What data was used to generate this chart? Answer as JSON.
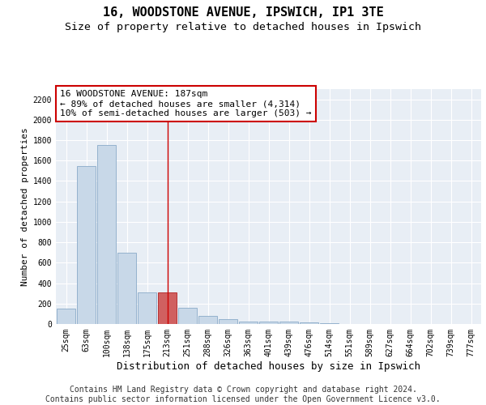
{
  "title_line1": "16, WOODSTONE AVENUE, IPSWICH, IP1 3TE",
  "title_line2": "Size of property relative to detached houses in Ipswich",
  "xlabel": "Distribution of detached houses by size in Ipswich",
  "ylabel": "Number of detached properties",
  "categories": [
    "25sqm",
    "63sqm",
    "100sqm",
    "138sqm",
    "175sqm",
    "213sqm",
    "251sqm",
    "288sqm",
    "326sqm",
    "363sqm",
    "401sqm",
    "439sqm",
    "476sqm",
    "514sqm",
    "551sqm",
    "589sqm",
    "627sqm",
    "664sqm",
    "702sqm",
    "739sqm",
    "777sqm"
  ],
  "values": [
    150,
    1550,
    1750,
    700,
    310,
    310,
    160,
    80,
    45,
    25,
    20,
    20,
    15,
    5,
    3,
    2,
    1,
    1,
    0,
    0,
    0
  ],
  "bar_color": "#c8d8e8",
  "bar_edge_color": "#8aaac8",
  "highlight_bar_index": 5,
  "highlight_bar_color": "#d06060",
  "highlight_bar_edge_color": "#b02020",
  "vline_color": "#cc0000",
  "annotation_text": "16 WOODSTONE AVENUE: 187sqm\n← 89% of detached houses are smaller (4,314)\n10% of semi-detached houses are larger (503) →",
  "annotation_box_facecolor": "#ffffff",
  "annotation_box_edgecolor": "#cc0000",
  "ylim": [
    0,
    2300
  ],
  "yticks": [
    0,
    200,
    400,
    600,
    800,
    1000,
    1200,
    1400,
    1600,
    1800,
    2000,
    2200
  ],
  "footer_line1": "Contains HM Land Registry data © Crown copyright and database right 2024.",
  "footer_line2": "Contains public sector information licensed under the Open Government Licence v3.0.",
  "fig_facecolor": "#ffffff",
  "plot_bg_color": "#e8eef5",
  "title_fontsize": 11,
  "subtitle_fontsize": 9.5,
  "tick_fontsize": 7,
  "xlabel_fontsize": 9,
  "ylabel_fontsize": 8,
  "footer_fontsize": 7,
  "annotation_fontsize": 8
}
